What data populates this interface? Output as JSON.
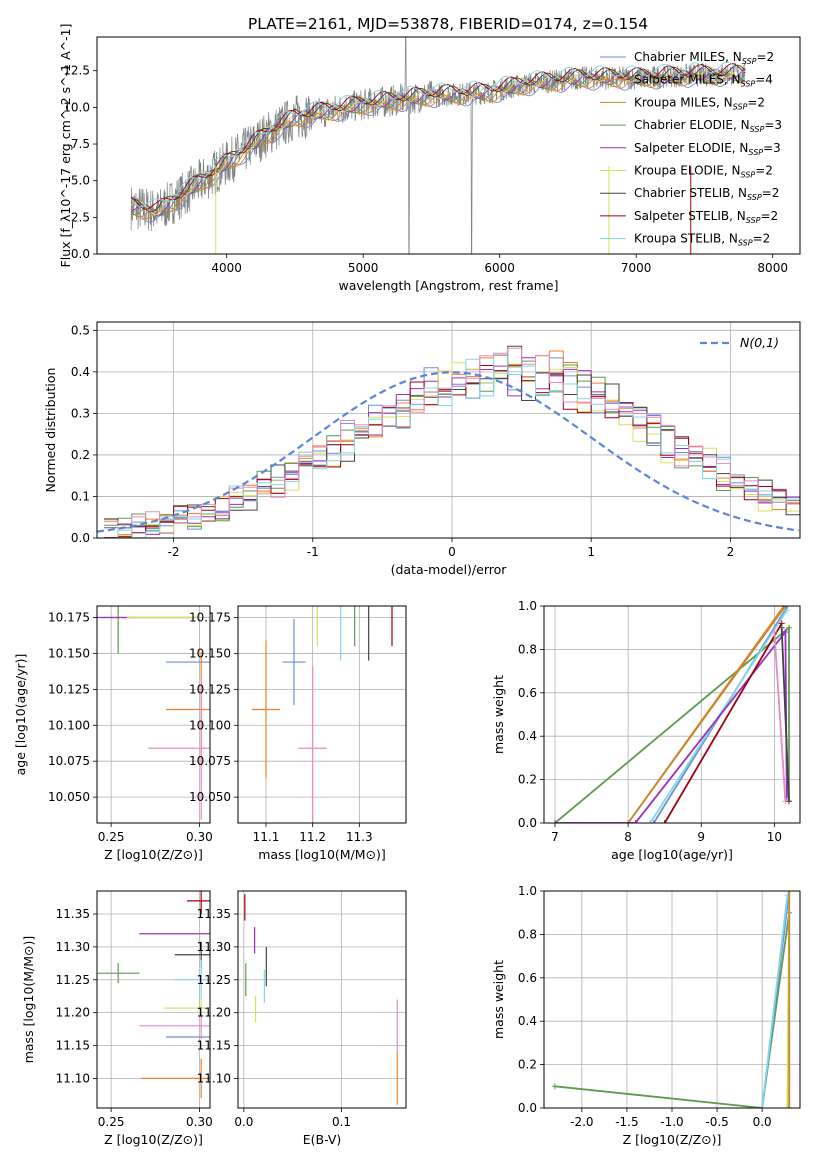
{
  "title": "PLATE=2161, MJD=53878, FIBERID=0174, z=0.154",
  "colors": {
    "Chabrier MILES": "#6a8fd8",
    "Salpeter MILES": "#f07f2a",
    "Kroupa MILES": "#c08a30",
    "Chabrier ELODIE": "#5f9a50",
    "Salpeter ELODIE": "#9a2fc0",
    "Kroupa ELODIE": "#d8e05a",
    "Chabrier STELIB": "#444444",
    "Salpeter STELIB": "#a00010",
    "Kroupa STELIB": "#7fd8e8",
    "data": "#808080",
    "pink": "#e78ac3"
  },
  "chart_data": [
    {
      "id": "spectrum",
      "type": "line",
      "xlabel": "wavelength [Angstrom, rest frame]",
      "ylabel": "Flux [f_λ10^-17 erg cm^-2 s^-1 A^-1]",
      "xlim": [
        3050,
        8200
      ],
      "ylim": [
        0,
        14.8
      ],
      "xticks": [
        4000,
        5000,
        6000,
        7000,
        8000
      ],
      "yticks": [
        0.0,
        2.5,
        5.0,
        7.5,
        10.0,
        12.5
      ],
      "legend_position": "right",
      "legend": [
        {
          "label": "Chabrier MILES, N",
          "sub": "SSP",
          "n": "=2",
          "color": "#6a8fd8"
        },
        {
          "label": "Salpeter MILES, N",
          "sub": "SSP",
          "n": "=4",
          "color": "#f07f2a"
        },
        {
          "label": "Kroupa MILES, N",
          "sub": "SSP",
          "n": "=2",
          "color": "#c08a30"
        },
        {
          "label": "Chabrier ELODIE, N",
          "sub": "SSP",
          "n": "=3",
          "color": "#5f9a50"
        },
        {
          "label": "Salpeter ELODIE, N",
          "sub": "SSP",
          "n": "=3",
          "color": "#9a2fc0"
        },
        {
          "label": "Kroupa ELODIE, N",
          "sub": "SSP",
          "n": "=2",
          "color": "#d8e05a"
        },
        {
          "label": "Chabrier STELIB, N",
          "sub": "SSP",
          "n": "=2",
          "color": "#444444"
        },
        {
          "label": "Salpeter STELIB, N",
          "sub": "SSP",
          "n": "=2",
          "color": "#a00010"
        },
        {
          "label": "Kroupa STELIB, N",
          "sub": "SSP",
          "n": "=2",
          "color": "#7fd8e8"
        }
      ],
      "continuum": {
        "x": [
          3300,
          3500,
          3900,
          4300,
          4500,
          5000,
          5500,
          5900,
          6200,
          6600,
          7000,
          7400,
          7800
        ],
        "y": [
          3.2,
          2.9,
          5.5,
          8.2,
          9.3,
          10.2,
          10.8,
          11.0,
          11.6,
          12.0,
          12.0,
          12.2,
          12.3
        ]
      }
    },
    {
      "id": "residuals",
      "type": "line",
      "xlabel": "(data-model)/error",
      "ylabel": "Normed distribution",
      "xlim": [
        -2.55,
        2.5
      ],
      "ylim": [
        0,
        0.52
      ],
      "xticks": [
        -2,
        -1,
        0,
        1,
        2
      ],
      "yticks": [
        0.0,
        0.1,
        0.2,
        0.3,
        0.4,
        0.5
      ],
      "legend_label": "N(0,1)",
      "legend_position": "top-right",
      "bin_centers": [
        -2.45,
        -2.35,
        -2.25,
        -2.15,
        -2.05,
        -1.95,
        -1.85,
        -1.75,
        -1.65,
        -1.55,
        -1.45,
        -1.35,
        -1.25,
        -1.15,
        -1.05,
        -0.95,
        -0.85,
        -0.75,
        -0.65,
        -0.55,
        -0.45,
        -0.35,
        -0.25,
        -0.15,
        -0.05,
        0.05,
        0.15,
        0.25,
        0.35,
        0.45,
        0.55,
        0.65,
        0.75,
        0.85,
        0.95,
        1.05,
        1.15,
        1.25,
        1.35,
        1.45,
        1.55,
        1.65,
        1.75,
        1.85,
        1.95,
        2.05,
        2.15,
        2.25,
        2.35,
        2.45
      ],
      "envelope": [
        0.02,
        0.025,
        0.03,
        0.035,
        0.04,
        0.045,
        0.05,
        0.06,
        0.07,
        0.085,
        0.1,
        0.115,
        0.13,
        0.15,
        0.17,
        0.19,
        0.21,
        0.23,
        0.25,
        0.27,
        0.29,
        0.31,
        0.32,
        0.34,
        0.35,
        0.36,
        0.37,
        0.38,
        0.385,
        0.39,
        0.39,
        0.385,
        0.375,
        0.36,
        0.35,
        0.33,
        0.31,
        0.29,
        0.27,
        0.25,
        0.23,
        0.21,
        0.19,
        0.17,
        0.15,
        0.13,
        0.115,
        0.1,
        0.09,
        0.08
      ]
    },
    {
      "id": "age-vs-Z",
      "type": "scatter",
      "xlabel": "Z [log10(Z/Z⊙)]",
      "ylabel": "age  [log10(age/yr)]",
      "xlim": [
        0.242,
        0.306
      ],
      "ylim": [
        10.032,
        10.183
      ],
      "xticks": [
        0.25,
        0.3
      ],
      "yticks": [
        10.05,
        10.075,
        10.1,
        10.125,
        10.15,
        10.175
      ],
      "points": [
        {
          "x": 0.301,
          "y": 10.144,
          "xerr": 0.02,
          "yerr": 0,
          "color": "#6a8fd8"
        },
        {
          "x": 0.301,
          "y": 10.111,
          "xerr": 0.02,
          "yerr": 0.04,
          "color": "#f07f2a"
        },
        {
          "x": 0.301,
          "y": 10.084,
          "xerr": 0.03,
          "yerr": 0.05,
          "color": "#e78ac3"
        },
        {
          "x": 0.254,
          "y": 10.175,
          "xerr": 0.01,
          "yerr": 0.025,
          "color": "#5f9a50"
        },
        {
          "x": 0.27,
          "y": 10.175,
          "xerr": 0.03,
          "yerr": 0,
          "color": "#9a2fc0"
        },
        {
          "x": 0.28,
          "y": 10.175,
          "xerr": 0.021,
          "yerr": 0,
          "color": "#d8e05a"
        }
      ]
    },
    {
      "id": "age-vs-mass",
      "type": "scatter",
      "xlabel": "mass [log10(M/M⊙)]",
      "ylabel": "",
      "xlim": [
        11.04,
        11.4
      ],
      "ylim": [
        10.032,
        10.183
      ],
      "xticks": [
        11.1,
        11.2,
        11.3
      ],
      "yticks": [
        10.05,
        10.075,
        10.1,
        10.125,
        10.15,
        10.175
      ],
      "points": [
        {
          "x": 11.1,
          "y": 10.111,
          "xerr": 0.03,
          "yerr": 0.048,
          "color": "#f07f2a"
        },
        {
          "x": 11.16,
          "y": 10.144,
          "xerr": 0.025,
          "yerr": 0.03,
          "color": "#6a8fd8"
        },
        {
          "x": 11.2,
          "y": 10.084,
          "xerr": 0.03,
          "yerr": 0.057,
          "color": "#e78ac3"
        },
        {
          "x": 11.21,
          "y": 10.175,
          "xerr": 0,
          "yerr": 0.02,
          "color": "#d8e05a"
        },
        {
          "x": 11.26,
          "y": 10.175,
          "xerr": 0,
          "yerr": 0.03,
          "color": "#7fd8e8"
        },
        {
          "x": 11.29,
          "y": 10.175,
          "xerr": 0,
          "yerr": 0.02,
          "color": "#5f9a50"
        },
        {
          "x": 11.32,
          "y": 10.175,
          "xerr": 0,
          "yerr": 0.03,
          "color": "#444444"
        },
        {
          "x": 11.37,
          "y": 10.175,
          "xerr": 0,
          "yerr": 0.02,
          "color": "#a00010"
        }
      ]
    },
    {
      "id": "massweight-vs-age",
      "type": "line",
      "xlabel": "age  [log10(age/yr)]",
      "ylabel": "mass weight",
      "xlim": [
        6.85,
        10.35
      ],
      "ylim": [
        0,
        1.0
      ],
      "xticks": [
        7,
        8,
        9,
        10
      ],
      "yticks": [
        0.0,
        0.2,
        0.4,
        0.6,
        0.8,
        1.0
      ],
      "series": [
        {
          "color": "#5f9a50",
          "x": [
            7.0,
            10.2,
            10.2
          ],
          "y": [
            0.0,
            0.9,
            0.1
          ]
        },
        {
          "color": "#f07f2a",
          "x": [
            8.0,
            10.13
          ],
          "y": [
            0.0,
            1.0
          ]
        },
        {
          "color": "#c08a30",
          "x": [
            8.0,
            10.15
          ],
          "y": [
            0.0,
            1.0
          ]
        },
        {
          "color": "#6a8fd8",
          "x": [
            8.35,
            10.18
          ],
          "y": [
            0.0,
            1.0
          ]
        },
        {
          "color": "#7fd8e8",
          "x": [
            8.3,
            10.17
          ],
          "y": [
            0.0,
            0.98
          ]
        },
        {
          "color": "#9a2fc0",
          "x": [
            7.0,
            8.1,
            10.15,
            10.17
          ],
          "y": [
            0.0,
            0.0,
            0.88,
            0.12
          ]
        },
        {
          "color": "#a00010",
          "x": [
            8.5,
            10.1
          ],
          "y": [
            0.0,
            0.92
          ]
        },
        {
          "color": "#e78ac3",
          "x": [
            10.0,
            10.15
          ],
          "y": [
            0.88,
            0.1
          ]
        },
        {
          "color": "#444444",
          "x": [
            10.1,
            10.2
          ],
          "y": [
            0.9,
            0.1
          ]
        }
      ]
    },
    {
      "id": "mass-vs-Z",
      "type": "scatter",
      "xlabel": "Z [log10(Z/Z⊙)]",
      "ylabel": "mass [log10(M/M⊙)]",
      "xlim": [
        0.242,
        0.306
      ],
      "ylim": [
        11.055,
        11.385
      ],
      "xticks": [
        0.25,
        0.3
      ],
      "yticks": [
        11.1,
        11.15,
        11.2,
        11.25,
        11.3,
        11.35
      ],
      "points": [
        {
          "x": 0.301,
          "y": 11.37,
          "xerr": 0.008,
          "yerr": 0.02,
          "color": "#a00010"
        },
        {
          "x": 0.301,
          "y": 11.32,
          "xerr": 0.035,
          "yerr": 0,
          "color": "#9a2fc0"
        },
        {
          "x": 0.301,
          "y": 11.288,
          "xerr": 0.015,
          "yerr": 0.02,
          "color": "#444444"
        },
        {
          "x": 0.254,
          "y": 11.26,
          "xerr": 0.012,
          "yerr": 0.015,
          "color": "#5f9a50"
        },
        {
          "x": 0.301,
          "y": 11.25,
          "xerr": 0.015,
          "yerr": 0.03,
          "color": "#7fd8e8"
        },
        {
          "x": 0.301,
          "y": 11.207,
          "xerr": 0.021,
          "yerr": 0.015,
          "color": "#d8e05a"
        },
        {
          "x": 0.301,
          "y": 11.18,
          "xerr": 0.035,
          "yerr": 0.02,
          "color": "#e78ac3"
        },
        {
          "x": 0.301,
          "y": 11.163,
          "xerr": 0.02,
          "yerr": 0,
          "color": "#6a8fd8"
        },
        {
          "x": 0.301,
          "y": 11.1,
          "xerr": 0.034,
          "yerr": 0.03,
          "color": "#f07f2a"
        }
      ]
    },
    {
      "id": "mass-vs-EBV",
      "type": "scatter",
      "xlabel": "E(B-V)",
      "ylabel": "",
      "xlim": [
        -0.006,
        0.166
      ],
      "ylim": [
        11.055,
        11.385
      ],
      "xticks": [
        0.0,
        0.1
      ],
      "yticks": [
        11.1,
        11.15,
        11.2,
        11.25,
        11.3,
        11.35
      ],
      "points": [
        {
          "x": 0.001,
          "y": 11.36,
          "xerr": 0,
          "yerr": 0.02,
          "color": "#a00010"
        },
        {
          "x": 0.011,
          "y": 11.31,
          "xerr": 0,
          "yerr": 0.02,
          "color": "#9a2fc0"
        },
        {
          "x": 0.023,
          "y": 11.27,
          "xerr": 0,
          "yerr": 0.03,
          "color": "#444444"
        },
        {
          "x": 0.002,
          "y": 11.25,
          "xerr": 0,
          "yerr": 0.025,
          "color": "#5f9a50"
        },
        {
          "x": 0.021,
          "y": 11.24,
          "xerr": 0,
          "yerr": 0.025,
          "color": "#7fd8e8"
        },
        {
          "x": 0.012,
          "y": 11.205,
          "xerr": 0,
          "yerr": 0.02,
          "color": "#d8e05a"
        },
        {
          "x": 0.157,
          "y": 11.18,
          "xerr": 0,
          "yerr": 0.04,
          "color": "#e78ac3"
        },
        {
          "x": 0.157,
          "y": 11.1,
          "xerr": 0,
          "yerr": 0.04,
          "color": "#f07f2a"
        }
      ]
    },
    {
      "id": "massweight-vs-Z",
      "type": "line",
      "xlabel": "Z [log10(Z/Z⊙)]",
      "ylabel": "mass weight",
      "xlim": [
        -2.42,
        0.42
      ],
      "ylim": [
        0,
        1.0
      ],
      "xticks": [
        -2.0,
        -1.5,
        -1.0,
        -0.5,
        0.0
      ],
      "yticks": [
        0.0,
        0.2,
        0.4,
        0.6,
        0.8,
        1.0
      ],
      "series": [
        {
          "color": "#5f9a50",
          "x": [
            -2.3,
            0.0,
            0.3,
            0.3
          ],
          "y": [
            0.1,
            0.0,
            0.9,
            0.0
          ]
        },
        {
          "color": "#6a8fd8",
          "x": [
            0.0,
            0.3
          ],
          "y": [
            0.0,
            1.0
          ]
        },
        {
          "color": "#7fd8e8",
          "x": [
            0.0,
            0.28
          ],
          "y": [
            0.0,
            0.98
          ]
        },
        {
          "color": "#d8e05a",
          "x": [
            0.28,
            0.3
          ],
          "y": [
            0.0,
            1.0
          ]
        },
        {
          "color": "#c08a30",
          "x": [
            0.3,
            0.3
          ],
          "y": [
            0.0,
            1.0
          ]
        }
      ]
    }
  ]
}
